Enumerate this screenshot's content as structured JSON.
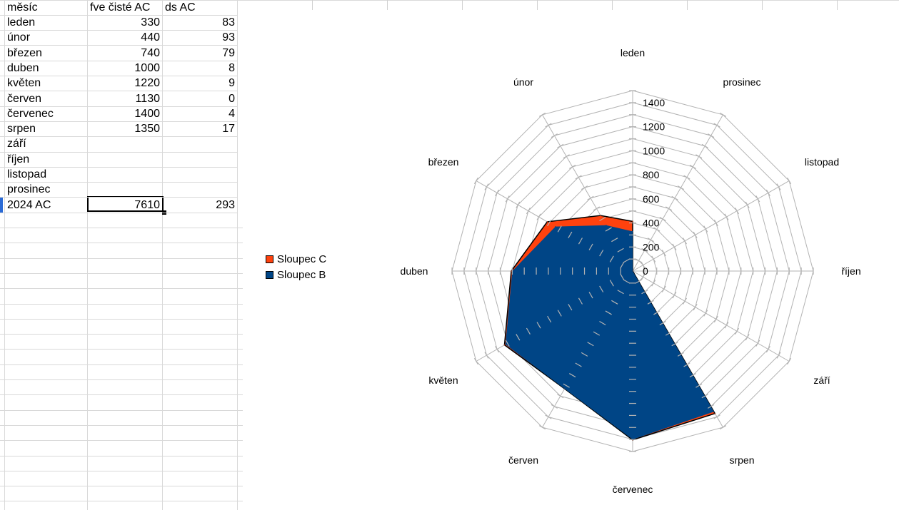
{
  "sheet": {
    "header": [
      "měsíc",
      "fve čisté AC",
      "ds AC"
    ],
    "rows": [
      {
        "month": "leden",
        "fve": "330",
        "ds": "83"
      },
      {
        "month": "únor",
        "fve": "440",
        "ds": "93"
      },
      {
        "month": "březen",
        "fve": "740",
        "ds": "79"
      },
      {
        "month": "duben",
        "fve": "1000",
        "ds": "8"
      },
      {
        "month": "květen",
        "fve": "1220",
        "ds": "9"
      },
      {
        "month": "červen",
        "fve": "1130",
        "ds": "0"
      },
      {
        "month": "červenec",
        "fve": "1400",
        "ds": "4"
      },
      {
        "month": "srpen",
        "fve": "1350",
        "ds": "17"
      },
      {
        "month": "září",
        "fve": "",
        "ds": ""
      },
      {
        "month": "říjen",
        "fve": "",
        "ds": ""
      },
      {
        "month": "listopad",
        "fve": "",
        "ds": ""
      },
      {
        "month": "prosinec",
        "fve": "",
        "ds": ""
      },
      {
        "month": "2024 AC",
        "fve": "7610",
        "ds": "293"
      }
    ]
  },
  "chart_data": {
    "type": "radar",
    "categories": [
      "leden",
      "únor",
      "březen",
      "duben",
      "květen",
      "červen",
      "červenec",
      "srpen",
      "září",
      "říjen",
      "listopad",
      "prosinec"
    ],
    "series": [
      {
        "name": "Sloupec C",
        "values": [
          413,
          533,
          819,
          1008,
          1229,
          1130,
          1404,
          1367,
          0,
          0,
          0,
          0
        ],
        "color": "#ff420e"
      },
      {
        "name": "Sloupec B",
        "values": [
          330,
          440,
          740,
          1000,
          1220,
          1130,
          1400,
          1350,
          0,
          0,
          0,
          0
        ],
        "color": "#004586"
      }
    ],
    "r_ticks": [
      "0",
      "200",
      "400",
      "600",
      "800",
      "1000",
      "1200",
      "1400"
    ],
    "rlim": [
      0,
      1500
    ],
    "stacked": true,
    "legend": "left"
  }
}
